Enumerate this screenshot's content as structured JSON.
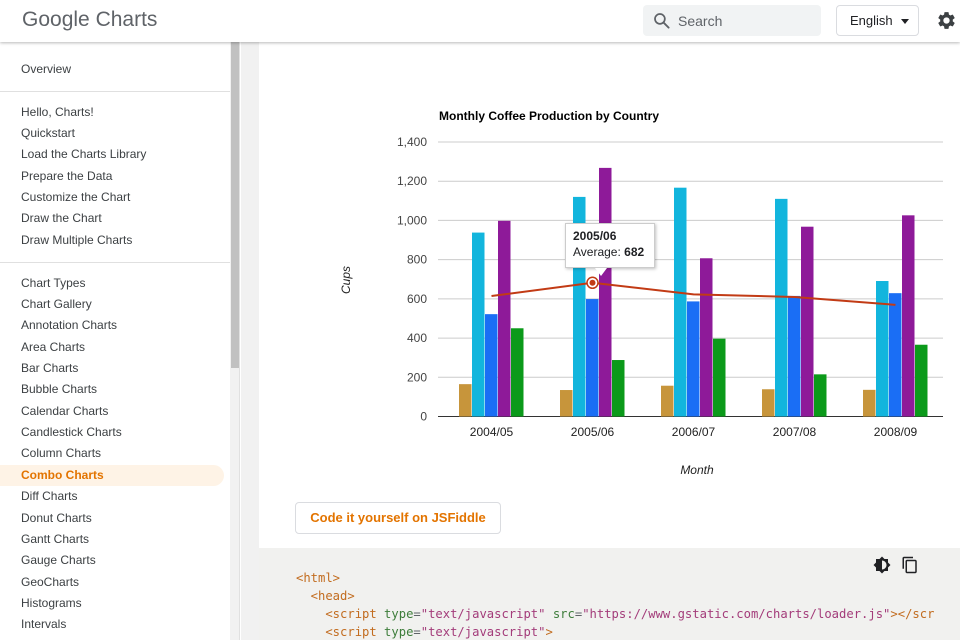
{
  "header": {
    "logo_google": "Google",
    "logo_product": "Charts",
    "search_placeholder": "Search",
    "language": "English"
  },
  "sidebar": {
    "overview": "Overview",
    "section1_title": "Hello, Charts!",
    "section1_items": [
      "Quickstart",
      "Load the Charts Library",
      "Prepare the Data",
      "Customize the Chart",
      "Draw the Chart",
      "Draw Multiple Charts"
    ],
    "section2_title": "Chart Types",
    "section2_items": [
      "Chart Gallery",
      "Annotation Charts",
      "Area Charts",
      "Bar Charts",
      "Bubble Charts",
      "Calendar Charts",
      "Candlestick Charts",
      "Column Charts",
      "Combo Charts",
      "Diff Charts",
      "Donut Charts",
      "Gantt Charts",
      "Gauge Charts",
      "GeoCharts",
      "Histograms",
      "Intervals"
    ],
    "active_item": "Combo Charts"
  },
  "colors": {
    "accent": "#e37400",
    "series": [
      "#c7953b",
      "#12b5dd",
      "#1a6ef5",
      "#8e1a99",
      "#0b9a1a"
    ],
    "average_line": "#c23b15"
  },
  "chart_data": {
    "type": "bar",
    "title": "Monthly Coffee Production by Country",
    "xlabel": "Month",
    "ylabel": "Cups",
    "categories": [
      "2004/05",
      "2005/06",
      "2006/07",
      "2007/08",
      "2008/09"
    ],
    "yticks": [
      "0",
      "200",
      "400",
      "600",
      "800",
      "1,000",
      "1,200",
      "1,400"
    ],
    "ylim": [
      0,
      1400
    ],
    "grid": true,
    "series": [
      {
        "values": [
          165,
          135,
          157,
          139,
          136
        ]
      },
      {
        "values": [
          938,
          1120,
          1167,
          1110,
          691
        ]
      },
      {
        "values": [
          522,
          599,
          587,
          615,
          629
        ]
      },
      {
        "values": [
          998,
          1268,
          807,
          968,
          1026
        ]
      },
      {
        "values": [
          450,
          288,
          397,
          215,
          366
        ]
      }
    ],
    "line_series": {
      "type": "line",
      "values": [
        614.6,
        682,
        623,
        609.4,
        569.6
      ]
    },
    "tooltip": {
      "title": "2005/06",
      "label": "Average:",
      "value": "682"
    }
  },
  "actions": {
    "fiddle": "Code it yourself on JSFiddle"
  },
  "code": {
    "line1": "<html>",
    "line2": "  <head>",
    "line3_tag_open": "    <script",
    "line3_attr1": " type",
    "line3_val1": "\"text/javascript\"",
    "line3_attr2": " src",
    "line3_val2": "\"https://www.gstatic.com/charts/loader.js\"",
    "line3_close": "></scr",
    "line4_tag_open": "    <script",
    "line4_attr1": " type",
    "line4_val1": "\"text/javascript\"",
    "line4_close": ">"
  }
}
